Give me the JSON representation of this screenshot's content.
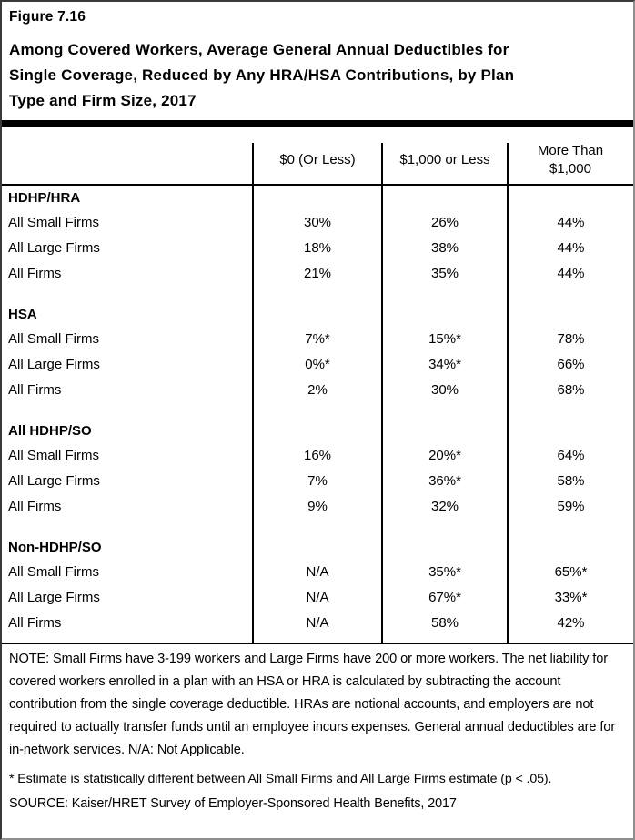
{
  "header": {
    "figure_label": "Figure 7.16",
    "title": "Among Covered Workers, Average General Annual Deductibles for Single Coverage, Reduced by Any HRA/HSA Contributions, by Plan Type and Firm Size, 2017",
    "title_lines": [
      "Among Covered Workers, Average General Annual Deductibles for",
      "Single Coverage, Reduced by Any HRA/HSA Contributions, by Plan",
      "Type and Firm Size, 2017"
    ]
  },
  "table": {
    "columns": [
      "$0 (Or Less)",
      "$1,000 or Less",
      "More Than $1,000"
    ],
    "groups": [
      {
        "label": "HDHP/HRA",
        "rows": [
          {
            "label": "All Small Firms",
            "values": [
              "30%",
              "26%",
              "44%"
            ]
          },
          {
            "label": "All Large Firms",
            "values": [
              "18%",
              "38%",
              "44%"
            ]
          },
          {
            "label": "All Firms",
            "values": [
              "21%",
              "35%",
              "44%"
            ]
          }
        ]
      },
      {
        "label": "HSA",
        "rows": [
          {
            "label": "All Small Firms",
            "values": [
              "7%*",
              "15%*",
              "78%"
            ]
          },
          {
            "label": "All Large Firms",
            "values": [
              "0%*",
              "34%*",
              "66%"
            ]
          },
          {
            "label": "All Firms",
            "values": [
              "2%",
              "30%",
              "68%"
            ]
          }
        ]
      },
      {
        "label": "All HDHP/SO",
        "rows": [
          {
            "label": "All Small Firms",
            "values": [
              "16%",
              "20%*",
              "64%"
            ]
          },
          {
            "label": "All Large Firms",
            "values": [
              "7%",
              "36%*",
              "58%"
            ]
          },
          {
            "label": "All Firms",
            "values": [
              "9%",
              "32%",
              "59%"
            ]
          }
        ]
      },
      {
        "label": "Non-HDHP/SO",
        "rows": [
          {
            "label": "All Small Firms",
            "values": [
              "N/A",
              "35%*",
              "65%*"
            ]
          },
          {
            "label": "All Large Firms",
            "values": [
              "N/A",
              "67%*",
              "33%*"
            ]
          },
          {
            "label": "All Firms",
            "values": [
              "N/A",
              "58%",
              "42%"
            ]
          }
        ]
      }
    ]
  },
  "notes": {
    "note": "NOTE: Small Firms have 3-199 workers and Large Firms have 200 or more workers. The net liability for covered workers enrolled in a plan with an HSA or HRA is calculated by subtracting the account contribution from the single coverage deductible. HRAs are notional accounts, and employers are not required to actually transfer funds until an employee incurs expenses. General annual deductibles are for in-network services. N/A: Not Applicable.",
    "footnote": "* Estimate is statistically different between All Small Firms and All Large Firms estimate (p < .05).",
    "source": "SOURCE: Kaiser/HRET Survey of Employer-Sponsored Health Benefits, 2017"
  },
  "colors": {
    "text": "#000000",
    "background": "#ffffff",
    "divider_bar": "#000000",
    "table_rules": "#000000",
    "outer_border_top_left": "#3a3a3a",
    "outer_border_bottom_right": "#8e8e8e"
  }
}
